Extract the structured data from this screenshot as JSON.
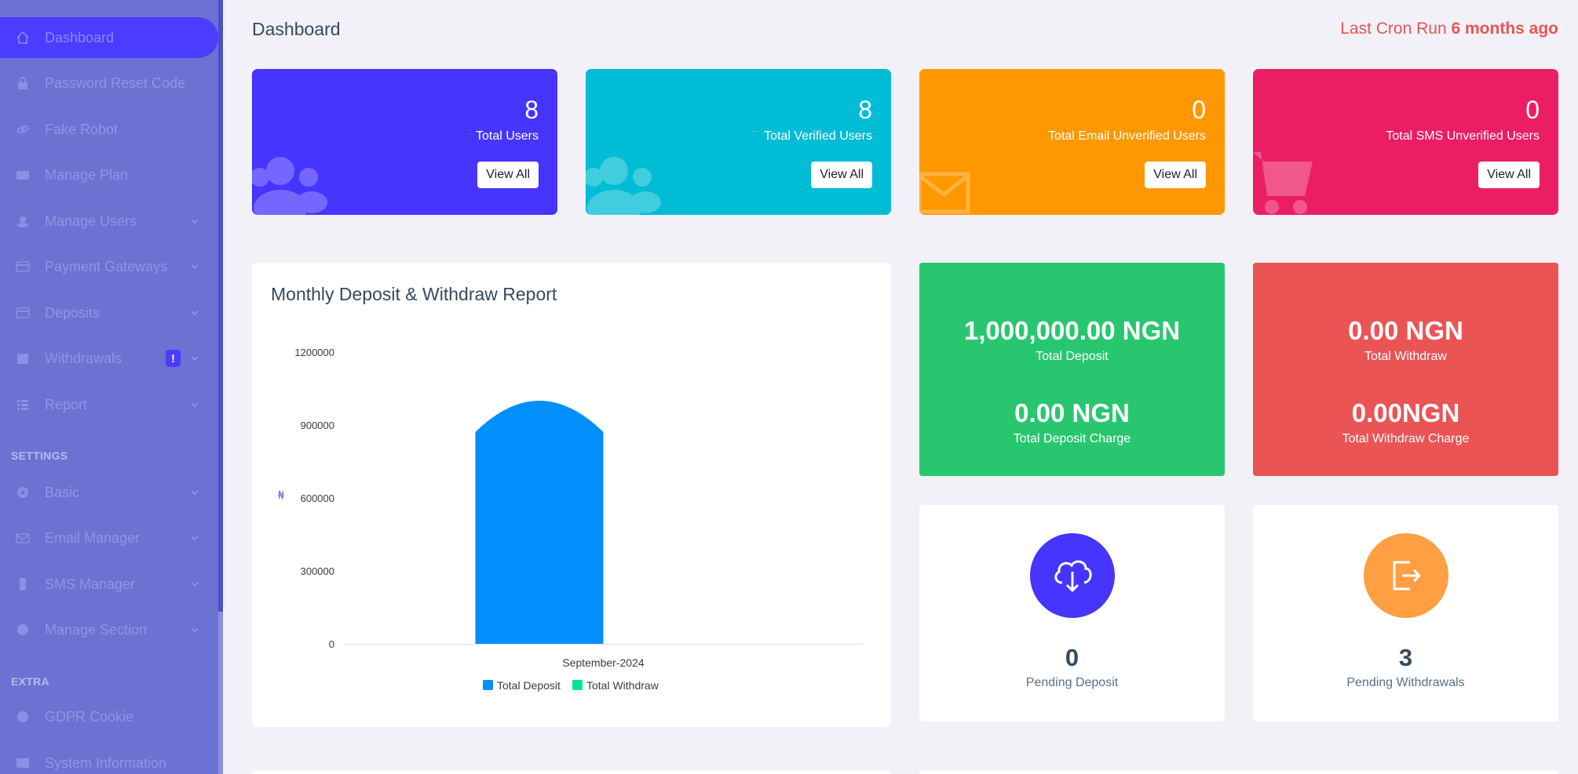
{
  "sidebar": {
    "items": [
      {
        "label": "Dashboard"
      },
      {
        "label": "Password Reset Code"
      },
      {
        "label": "Fake Robot"
      },
      {
        "label": "Manage Plan"
      },
      {
        "label": "Manage Users"
      },
      {
        "label": "Payment Gateways"
      },
      {
        "label": "Deposits"
      },
      {
        "label": "Withdrawals",
        "badge": "!"
      },
      {
        "label": "Report"
      }
    ],
    "settings_label": "SETTINGS",
    "settings_items": [
      {
        "label": "Basic"
      },
      {
        "label": "Email Manager"
      },
      {
        "label": "SMS Manager"
      },
      {
        "label": "Manage Section"
      }
    ],
    "extra_label": "EXTRA",
    "extra_items": [
      {
        "label": "GDPR Cookie"
      },
      {
        "label": "System Information"
      }
    ]
  },
  "header": {
    "title": "Dashboard",
    "cron_prefix": "Last Cron Run",
    "cron_value": "6 months ago"
  },
  "stats": [
    {
      "value": "8",
      "label": "Total Users",
      "button": "View All",
      "color": "#4634ff",
      "icon": "users-icon"
    },
    {
      "value": "8",
      "label": "Total Verified Users",
      "button": "View All",
      "color": "#00bcd4",
      "icon": "users-icon"
    },
    {
      "value": "0",
      "label": "Total Email Unverified Users",
      "button": "View All",
      "color": "#ff9800",
      "icon": "envelope-icon"
    },
    {
      "value": "0",
      "label": "Total SMS Unverified Users",
      "button": "View All",
      "color": "#eb1e64",
      "icon": "cart-icon"
    }
  ],
  "chart": {
    "title": "Monthly Deposit & Withdraw Report",
    "y_axis_glyph": "₦"
  },
  "chart_data": {
    "type": "bar",
    "title": "Monthly Deposit & Withdraw Report",
    "categories": [
      "September-2024"
    ],
    "series": [
      {
        "name": "Total Deposit",
        "values": [
          1000000
        ],
        "color": "#008ffb"
      },
      {
        "name": "Total Withdraw",
        "values": [
          0
        ],
        "color": "#00e396"
      }
    ],
    "ylim": [
      0,
      1200000
    ],
    "yticks": [
      "1200000",
      "900000",
      "600000",
      "300000",
      "0"
    ],
    "legend_position": "bottom"
  },
  "money": {
    "deposit": {
      "amount": "1,000,000.00 NGN",
      "label": "Total Deposit",
      "charge": "0.00 NGN",
      "charge_label": "Total Deposit Charge",
      "color": "#28c76f"
    },
    "withdraw": {
      "amount": "0.00 NGN",
      "label": "Total Withdraw",
      "charge": "0.00NGN",
      "charge_label": "Total Withdraw Charge",
      "color": "#ea5455"
    }
  },
  "pending": {
    "deposit": {
      "value": "0",
      "label": "Pending Deposit",
      "color": "#4634ff",
      "icon": "cloud-download-icon"
    },
    "withdraw": {
      "value": "3",
      "label": "Pending Withdrawals",
      "color": "#ff9f43",
      "icon": "sign-out-icon"
    }
  }
}
